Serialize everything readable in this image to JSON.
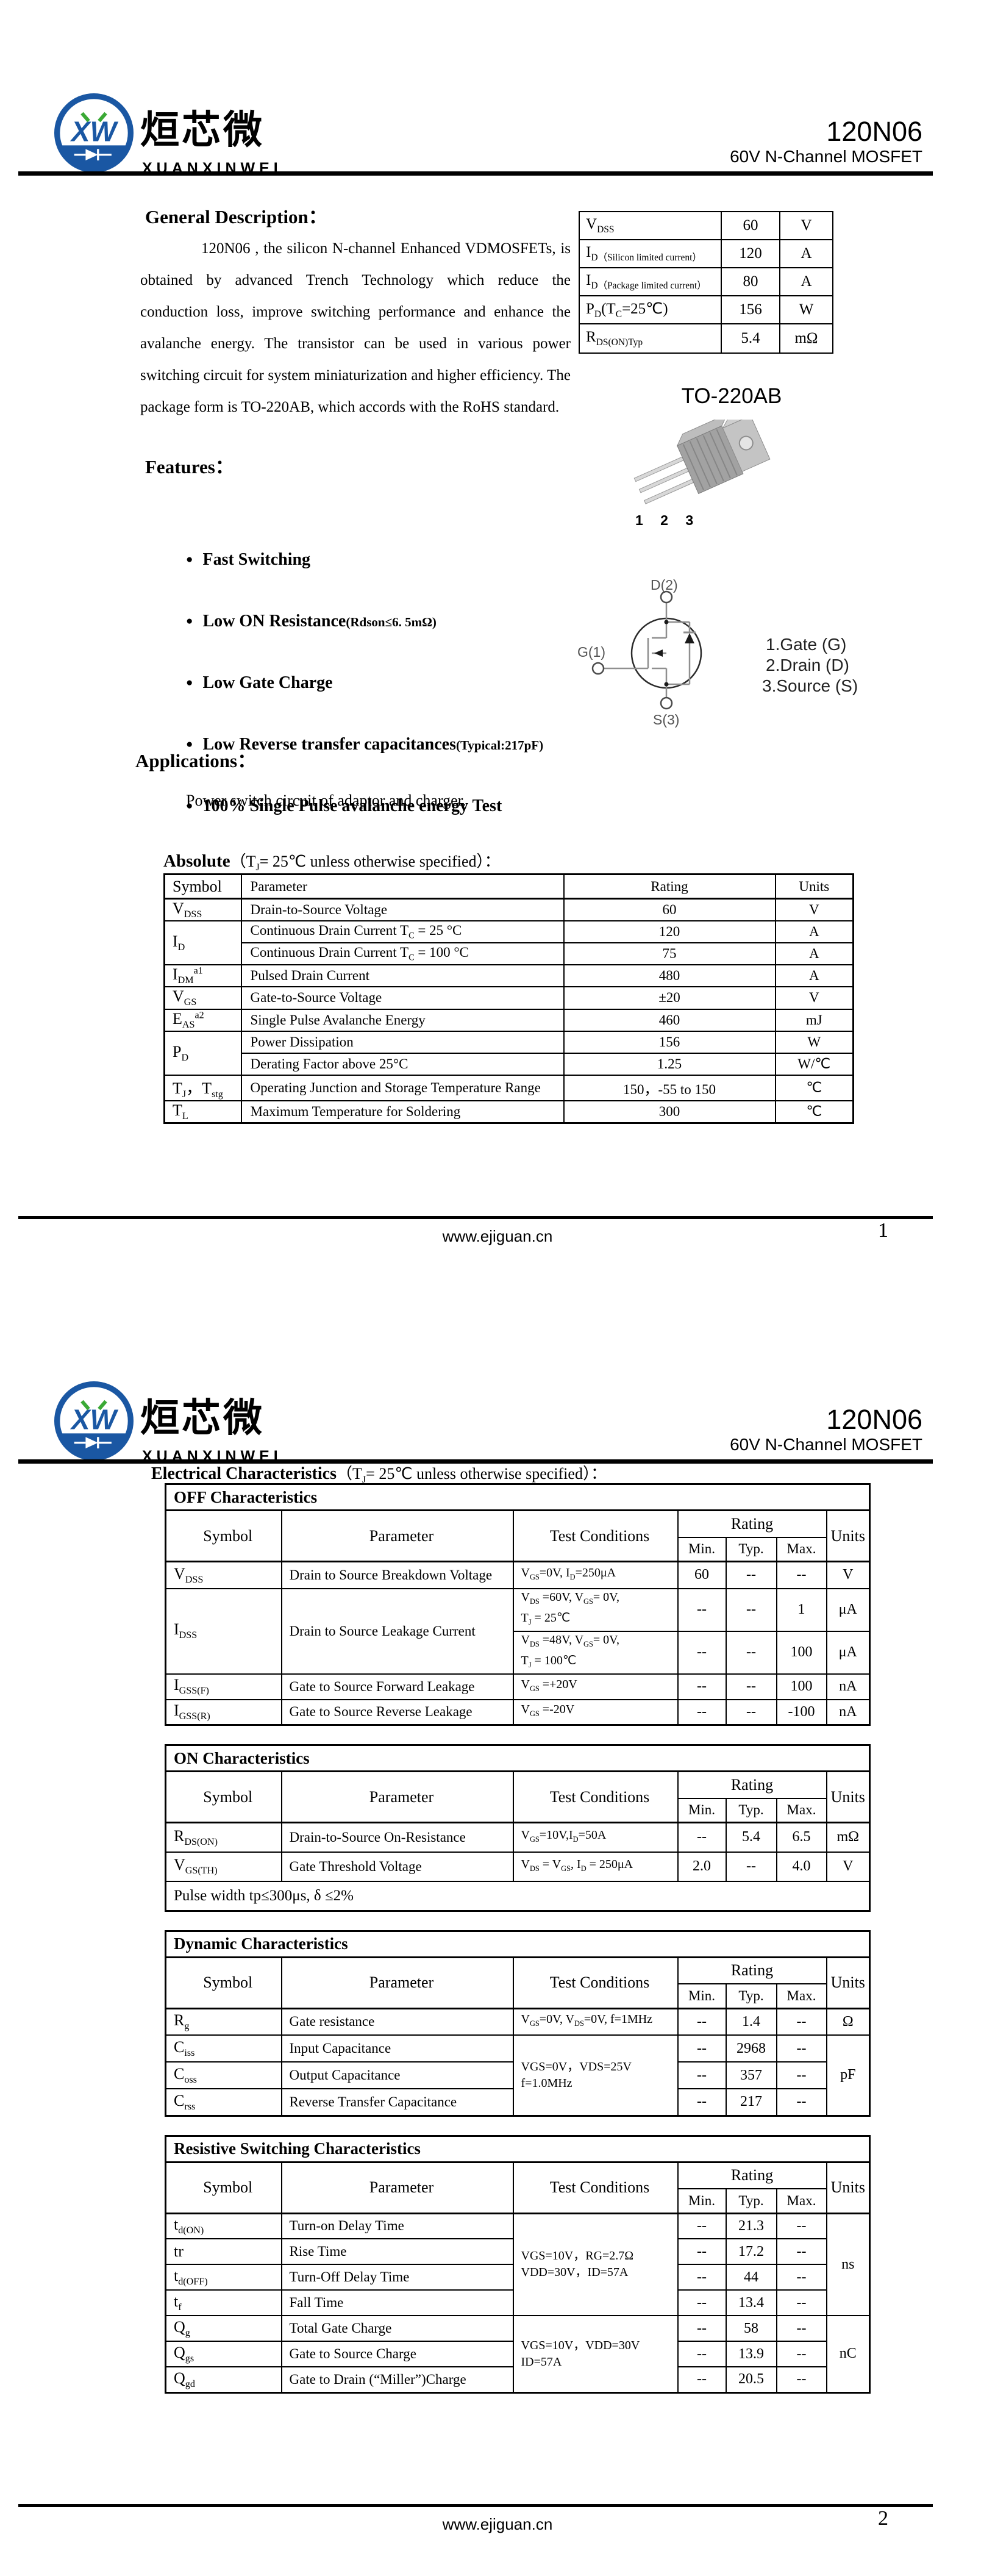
{
  "doc": {
    "brand_cn": "烜芯微",
    "brand_en": "XUANXINWEI",
    "part": "120N06",
    "subtitle": "60V N-Channel MOSFET",
    "footer_url": "www.ejiguan.cn"
  },
  "labels": {
    "symbol": "Symbol",
    "parameter": "Parameter",
    "conditions": "Test Conditions",
    "rating": "Rating",
    "min": "Min.",
    "typ": "Typ.",
    "max": "Max.",
    "units": "Units"
  },
  "page1": {
    "page_no": "1",
    "general": {
      "title": "General Description：",
      "body": "120N06 , the silicon N-channel Enhanced VDMOSFETs, is obtained by advanced Trench Technology which reduce the conduction loss, improve switching performance and enhance the avalanche energy. The transistor can be used in various power switching circuit for system miniaturization and higher efficiency. The package form is TO-220AB, which accords with the RoHS standard."
    },
    "summary": {
      "rows": [
        {
          "p": "V_{DSS}",
          "v": "60",
          "u": "V"
        },
        {
          "p": "I_{D（Silicon limited current）}",
          "v": "120",
          "u": "A"
        },
        {
          "p": "I_{D（Package limited current）}",
          "v": "80",
          "u": "A"
        },
        {
          "p": "P_{D}(T_{C}=25℃)",
          "v": "156",
          "u": "W"
        },
        {
          "p": "R_{DS(ON)Typ}",
          "v": "5.4",
          "u": "mΩ"
        }
      ]
    },
    "package": {
      "title": "TO-220AB",
      "pins": "1 2 3"
    },
    "features": {
      "title": "Features：",
      "items": [
        {
          "main": "Fast Switching",
          "note": ""
        },
        {
          "main": "Low ON Resistance",
          "note": "(Rdson≤6. 5mΩ)"
        },
        {
          "main": "Low Gate Charge",
          "note": ""
        },
        {
          "main": "Low Reverse transfer capacitances",
          "note": "(Typical:217pF)"
        },
        {
          "main": "100% Single Pulse avalanche energy Test",
          "note": ""
        }
      ]
    },
    "symbol_diagram": {
      "drain": "D(2)",
      "gate": "G(1)",
      "source": "S(3)",
      "pin_list": [
        "1.Gate (G)",
        "2.Drain (D)",
        "3.Source (S)"
      ]
    },
    "applications": {
      "title": "Applications：",
      "body": "Power switch circuit of adaptor and charger."
    },
    "absolute": {
      "title": "Absolute",
      "cond": "（T_{J}= 25℃  unless otherwise specified）：",
      "headers": {
        "symbol": "Symbol",
        "parameter": "Parameter",
        "rating": "Rating",
        "units": "Units"
      },
      "rows": [
        {
          "symbol": "V_{DSS}",
          "param": "Drain-to-Source Voltage",
          "rating": "60",
          "units": "V"
        },
        {
          "symbol": "I_{D}",
          "param": "Continuous Drain Current T_{C} = 25 °C",
          "rating": "120",
          "units": "A"
        },
        {
          "param": "Continuous Drain Current T_{C} = 100 °C",
          "rating": "75",
          "units": "A"
        },
        {
          "symbol": "I_{DM}^{a1}",
          "param": "Pulsed Drain Current",
          "rating": "480",
          "units": "A"
        },
        {
          "symbol": "V_{GS}",
          "param": "Gate-to-Source Voltage",
          "rating": "±20",
          "units": "V"
        },
        {
          "symbol": "E_{AS}^{a2}",
          "param": "Single Pulse Avalanche Energy",
          "rating": "460",
          "units": "mJ"
        },
        {
          "symbol": "P_{D}",
          "param": "Power Dissipation",
          "rating": "156",
          "units": "W"
        },
        {
          "param": "Derating Factor above 25°C",
          "rating": "1.25",
          "units": "W/℃"
        },
        {
          "symbol": "T_{J}，T_{stg}",
          "param": "Operating Junction and Storage Temperature Range",
          "rating": "150，-55 to 150",
          "units": "℃"
        },
        {
          "symbol": "T_{L}",
          "param": "Maximum Temperature for Soldering",
          "rating": "300",
          "units": "℃"
        }
      ]
    }
  },
  "page2": {
    "page_no": "2",
    "ec_title": "Electrical Characteristics",
    "ec_cond": "（T_{J}= 25℃  unless otherwise specified）：",
    "off": {
      "title": "OFF Characteristics",
      "rows": [
        {
          "symbol": "V_{DSS}",
          "param": "Drain to Source Breakdown Voltage",
          "cond": "V_{GS}=0V, I_{D}=250μA",
          "min": "60",
          "typ": "--",
          "max": "--",
          "units": "V"
        },
        {
          "symbol": "I_{DSS}",
          "param": "Drain to Source Leakage Current",
          "cond": "V_{DS} =60V, V_{GS}= 0V,\nT_{J} = 25℃",
          "min": "--",
          "typ": "--",
          "max": "1",
          "units": "μA"
        },
        {
          "cond": "V_{DS} =48V, V_{GS}= 0V,\nT_{J} = 100℃",
          "min": "--",
          "typ": "--",
          "max": "100",
          "units": "μA"
        },
        {
          "symbol": "I_{GSS(F)}",
          "param": "Gate to Source Forward Leakage",
          "cond": "V_{GS} =+20V",
          "min": "--",
          "typ": "--",
          "max": "100",
          "units": "nA"
        },
        {
          "symbol": "I_{GSS(R)}",
          "param": "Gate to Source Reverse Leakage",
          "cond": "V_{GS} =-20V",
          "min": "--",
          "typ": "--",
          "max": "-100",
          "units": "nA"
        }
      ]
    },
    "on": {
      "title": "ON Characteristics",
      "rows": [
        {
          "symbol": "R_{DS(ON)}",
          "param": "Drain-to-Source On-Resistance",
          "cond": "V_{GS}=10V,I_{D}=50A",
          "min": "--",
          "typ": "5.4",
          "max": "6.5",
          "units": "mΩ"
        },
        {
          "symbol": "V_{GS(TH)}",
          "param": "Gate Threshold Voltage",
          "cond": "V_{DS} = V_{GS}, I_{D} = 250μA",
          "min": "2.0",
          "typ": "--",
          "max": "4.0",
          "units": "V"
        }
      ],
      "note": "Pulse width tp≤300μs, δ ≤2%"
    },
    "dynamic": {
      "title": "Dynamic Characteristics",
      "rows": [
        {
          "symbol": "R_{g}",
          "param": "Gate resistance",
          "cond": "V_{GS}=0V, V_{DS}=0V, f=1MHz",
          "min": "--",
          "typ": "1.4",
          "max": "--",
          "units": "Ω"
        },
        {
          "symbol": "C_{iss}",
          "param": "Input Capacitance",
          "cond": "VGS=0V，VDS=25V\nf=1.0MHz",
          "min": "--",
          "typ": "2968",
          "max": "--",
          "units": "pF"
        },
        {
          "symbol": "C_{oss}",
          "param": "Output Capacitance",
          "min": "--",
          "typ": "357",
          "max": "--"
        },
        {
          "symbol": "C_{rss}",
          "param": "Reverse Transfer Capacitance",
          "min": "--",
          "typ": "217",
          "max": "--"
        }
      ]
    },
    "switching": {
      "title": "Resistive Switching Characteristics",
      "rows": [
        {
          "symbol": "t_{d(ON)}",
          "param": "Turn-on Delay Time",
          "cond": "VGS=10V，RG=2.7Ω\nVDD=30V，ID=57A",
          "min": "--",
          "typ": "21.3",
          "max": "--",
          "units": "ns"
        },
        {
          "symbol": "tr",
          "param": "Rise Time",
          "min": "--",
          "typ": "17.2",
          "max": "--"
        },
        {
          "symbol": "t_{d(OFF)}",
          "param": "Turn-Off Delay Time",
          "min": "--",
          "typ": "44",
          "max": "--"
        },
        {
          "symbol": "t_{f}",
          "param": "Fall Time",
          "min": "--",
          "typ": "13.4",
          "max": "--"
        },
        {
          "symbol": "Q_{g}",
          "param": "Total Gate Charge",
          "cond": "VGS=10V，VDD=30V\nID=57A",
          "min": "--",
          "typ": "58",
          "max": "--",
          "units": "nC"
        },
        {
          "symbol": "Q_{gs}",
          "param": "Gate to Source Charge",
          "min": "--",
          "typ": "13.9",
          "max": "--"
        },
        {
          "symbol": "Q_{gd}",
          "param": "Gate to Drain (“Miller”)Charge",
          "min": "--",
          "typ": "20.5",
          "max": "--"
        }
      ]
    }
  }
}
